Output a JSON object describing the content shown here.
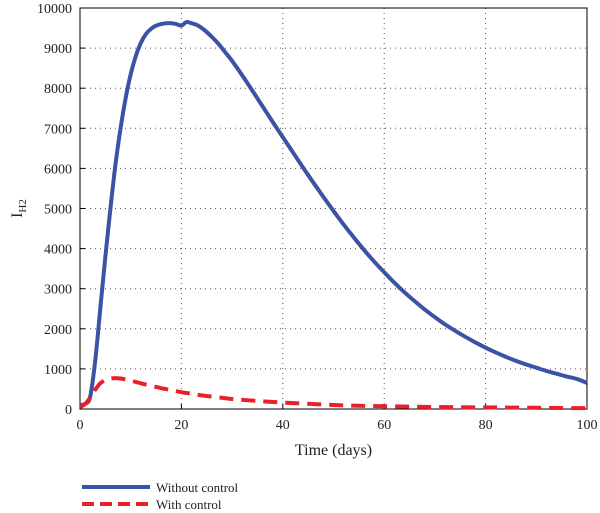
{
  "chart_data": {
    "type": "line",
    "xlabel": "Time (days)",
    "ylabel": {
      "main": "I",
      "sub": "H2"
    },
    "xlim": [
      0,
      100
    ],
    "ylim": [
      0,
      10000
    ],
    "xticks": [
      "0",
      "20",
      "40",
      "60",
      "80",
      "100"
    ],
    "yticks": [
      "0",
      "1000",
      "2000",
      "3000",
      "4000",
      "5000",
      "6000",
      "7000",
      "8000",
      "9000",
      "10000"
    ],
    "grid": true,
    "legend_position": "bottom-left",
    "series": [
      {
        "name": "Without control",
        "color": "#3b53a4",
        "style": "solid",
        "x": [
          0,
          1,
          2,
          3,
          4,
          5,
          6,
          7,
          8,
          9,
          10,
          11,
          12,
          13,
          14,
          15,
          16,
          17,
          18,
          19,
          20,
          21,
          22,
          23,
          24,
          25,
          26,
          27,
          28,
          29,
          30,
          32,
          34,
          36,
          38,
          40,
          42,
          44,
          46,
          48,
          50,
          52,
          54,
          56,
          58,
          60,
          62,
          64,
          66,
          68,
          70,
          72,
          74,
          76,
          78,
          80,
          82,
          84,
          86,
          88,
          90,
          92,
          94,
          96,
          98,
          100
        ],
        "y": [
          100,
          130,
          300,
          1200,
          2500,
          3800,
          5000,
          6100,
          7000,
          7750,
          8350,
          8800,
          9130,
          9350,
          9480,
          9560,
          9600,
          9620,
          9620,
          9600,
          9560,
          9650,
          9620,
          9580,
          9500,
          9400,
          9280,
          9150,
          9000,
          8840,
          8680,
          8320,
          7940,
          7550,
          7160,
          6780,
          6400,
          6020,
          5650,
          5290,
          4940,
          4600,
          4280,
          3970,
          3680,
          3410,
          3150,
          2910,
          2690,
          2480,
          2290,
          2110,
          1950,
          1800,
          1660,
          1530,
          1410,
          1300,
          1200,
          1110,
          1030,
          950,
          880,
          810,
          750,
          650
        ]
      },
      {
        "name": "With control",
        "color": "#e8202a",
        "style": "dashed",
        "x": [
          0,
          1,
          2,
          3,
          4,
          5,
          6,
          7,
          8,
          9,
          10,
          12,
          14,
          16,
          18,
          20,
          22,
          24,
          26,
          28,
          30,
          35,
          40,
          45,
          50,
          55,
          60,
          65,
          70,
          75,
          80,
          85,
          90,
          95,
          100
        ],
        "y": [
          50,
          120,
          280,
          480,
          640,
          720,
          760,
          770,
          760,
          740,
          710,
          640,
          580,
          520,
          470,
          420,
          380,
          340,
          310,
          280,
          250,
          200,
          160,
          130,
          100,
          80,
          70,
          60,
          50,
          45,
          40,
          35,
          30,
          25,
          20
        ]
      }
    ]
  }
}
